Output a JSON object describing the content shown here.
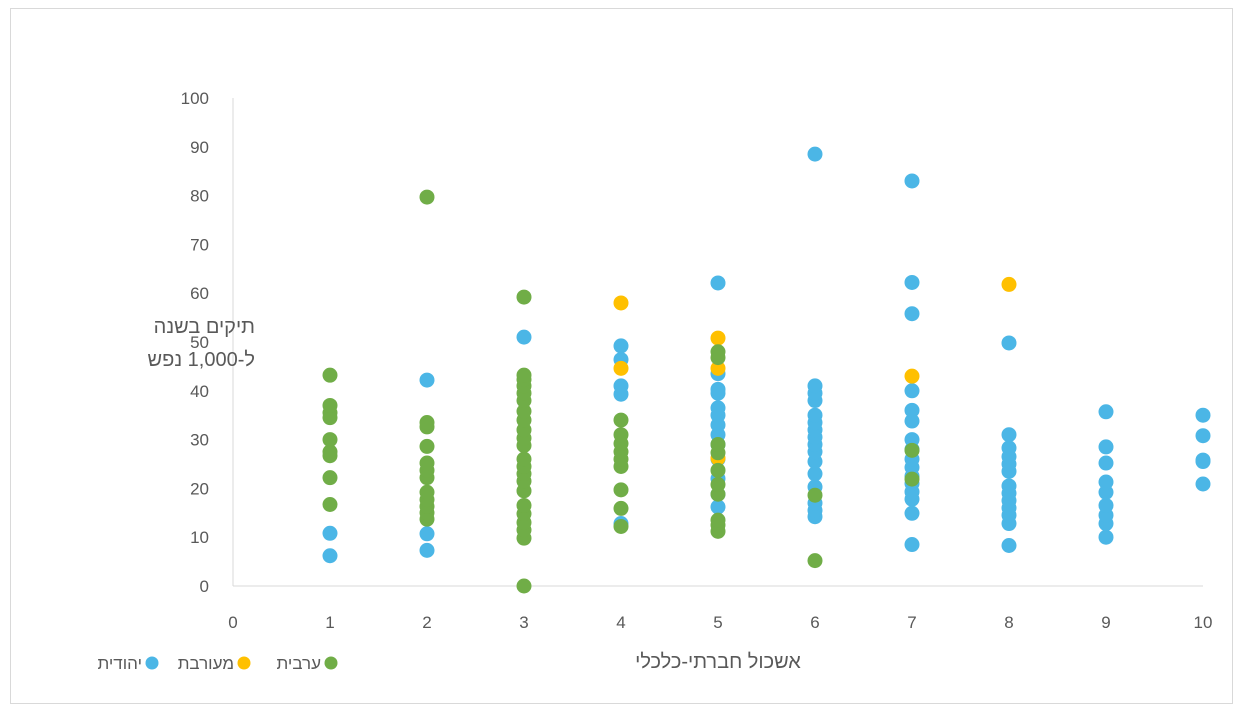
{
  "chart_data": {
    "type": "scatter",
    "xlabel": "אשכול חברתי-כלכלי",
    "ylabel": [
      "תיקים בשנה",
      "ל-1,000 נפש"
    ],
    "xlim": [
      0,
      10
    ],
    "ylim": [
      0,
      100
    ],
    "x_ticks": [
      0,
      1,
      2,
      3,
      4,
      5,
      6,
      7,
      8,
      9,
      10
    ],
    "y_ticks": [
      0,
      10,
      20,
      30,
      40,
      50,
      60,
      70,
      80,
      90,
      100
    ],
    "grid": false,
    "legend_position": "bottom-left",
    "series": [
      {
        "name": "יהודית",
        "color": "#4bb6e6",
        "points": [
          [
            1,
            6.2
          ],
          [
            1,
            10.8
          ],
          [
            2,
            7.3
          ],
          [
            2,
            10.7
          ],
          [
            2,
            42.2
          ],
          [
            3,
            51.0
          ],
          [
            4,
            12.8
          ],
          [
            4,
            39.3
          ],
          [
            4,
            41.0
          ],
          [
            4,
            46.4
          ],
          [
            4,
            49.2
          ],
          [
            5,
            16.2
          ],
          [
            5,
            18.8
          ],
          [
            5,
            22.0
          ],
          [
            5,
            26.0
          ],
          [
            5,
            29.0
          ],
          [
            5,
            31.0
          ],
          [
            5,
            33.0
          ],
          [
            5,
            35.0
          ],
          [
            5,
            36.5
          ],
          [
            5,
            39.5
          ],
          [
            5,
            40.3
          ],
          [
            5,
            43.5
          ],
          [
            5,
            62.1
          ],
          [
            6,
            14.2
          ],
          [
            6,
            15.5
          ],
          [
            6,
            17.0
          ],
          [
            6,
            20.3
          ],
          [
            6,
            23.0
          ],
          [
            6,
            25.5
          ],
          [
            6,
            27.5
          ],
          [
            6,
            29.0
          ],
          [
            6,
            30.5
          ],
          [
            6,
            32.0
          ],
          [
            6,
            33.5
          ],
          [
            6,
            35.0
          ],
          [
            6,
            38.0
          ],
          [
            6,
            39.5
          ],
          [
            6,
            41.0
          ],
          [
            6,
            88.5
          ],
          [
            7,
            8.5
          ],
          [
            7,
            14.9
          ],
          [
            7,
            17.8
          ],
          [
            7,
            19.3
          ],
          [
            7,
            21.0
          ],
          [
            7,
            22.5
          ],
          [
            7,
            24.3
          ],
          [
            7,
            26.0
          ],
          [
            7,
            28.0
          ],
          [
            7,
            30.0
          ],
          [
            7,
            33.8
          ],
          [
            7,
            36.0
          ],
          [
            7,
            40.0
          ],
          [
            7,
            55.8
          ],
          [
            7,
            62.2
          ],
          [
            7,
            83.0
          ],
          [
            8,
            8.3
          ],
          [
            8,
            12.8
          ],
          [
            8,
            14.5
          ],
          [
            8,
            16.0
          ],
          [
            8,
            17.5
          ],
          [
            8,
            19.0
          ],
          [
            8,
            20.5
          ],
          [
            8,
            23.5
          ],
          [
            8,
            25.0
          ],
          [
            8,
            26.5
          ],
          [
            8,
            28.3
          ],
          [
            8,
            31.0
          ],
          [
            8,
            49.8
          ],
          [
            9,
            10.0
          ],
          [
            9,
            12.8
          ],
          [
            9,
            14.5
          ],
          [
            9,
            16.5
          ],
          [
            9,
            19.2
          ],
          [
            9,
            21.3
          ],
          [
            9,
            25.2
          ],
          [
            9,
            28.5
          ],
          [
            9,
            35.7
          ],
          [
            10,
            20.9
          ],
          [
            10,
            25.5
          ],
          [
            10,
            25.8
          ],
          [
            10,
            30.8
          ],
          [
            10,
            35.0
          ]
        ]
      },
      {
        "name": "מעורבת",
        "color": "#ffc000",
        "points": [
          [
            4,
            44.6
          ],
          [
            4,
            58.0
          ],
          [
            5,
            26.2
          ],
          [
            5,
            44.6
          ],
          [
            5,
            50.8
          ],
          [
            7,
            43.0
          ],
          [
            8,
            61.8
          ]
        ]
      },
      {
        "name": "ערבית",
        "color": "#70ad47",
        "points": [
          [
            1,
            16.7
          ],
          [
            1,
            22.2
          ],
          [
            1,
            26.7
          ],
          [
            1,
            27.5
          ],
          [
            1,
            30.0
          ],
          [
            1,
            34.5
          ],
          [
            1,
            35.5
          ],
          [
            1,
            37.0
          ],
          [
            1,
            43.2
          ],
          [
            2,
            13.7
          ],
          [
            2,
            15.0
          ],
          [
            2,
            16.3
          ],
          [
            2,
            17.7
          ],
          [
            2,
            19.2
          ],
          [
            2,
            22.2
          ],
          [
            2,
            23.7
          ],
          [
            2,
            25.2
          ],
          [
            2,
            28.6
          ],
          [
            2,
            32.6
          ],
          [
            2,
            33.5
          ],
          [
            2,
            79.7
          ],
          [
            3,
            0.0
          ],
          [
            3,
            9.8
          ],
          [
            3,
            11.5
          ],
          [
            3,
            13.0
          ],
          [
            3,
            14.8
          ],
          [
            3,
            16.5
          ],
          [
            3,
            19.5
          ],
          [
            3,
            21.5
          ],
          [
            3,
            23.0
          ],
          [
            3,
            24.5
          ],
          [
            3,
            26.0
          ],
          [
            3,
            28.8
          ],
          [
            3,
            30.3
          ],
          [
            3,
            32.0
          ],
          [
            3,
            34.0
          ],
          [
            3,
            35.8
          ],
          [
            3,
            38.0
          ],
          [
            3,
            39.5
          ],
          [
            3,
            41.0
          ],
          [
            3,
            42.3
          ],
          [
            3,
            43.2
          ],
          [
            3,
            59.2
          ],
          [
            4,
            12.2
          ],
          [
            4,
            15.9
          ],
          [
            4,
            19.7
          ],
          [
            4,
            24.5
          ],
          [
            4,
            26.0
          ],
          [
            4,
            27.5
          ],
          [
            4,
            29.2
          ],
          [
            4,
            31.0
          ],
          [
            4,
            34.0
          ],
          [
            5,
            11.2
          ],
          [
            5,
            12.5
          ],
          [
            5,
            13.5
          ],
          [
            5,
            18.8
          ],
          [
            5,
            20.8
          ],
          [
            5,
            23.7
          ],
          [
            5,
            27.3
          ],
          [
            5,
            29.0
          ],
          [
            5,
            46.8
          ],
          [
            5,
            48.0
          ],
          [
            6,
            5.2
          ],
          [
            6,
            18.6
          ],
          [
            7,
            21.9
          ],
          [
            7,
            27.8
          ]
        ]
      }
    ]
  }
}
